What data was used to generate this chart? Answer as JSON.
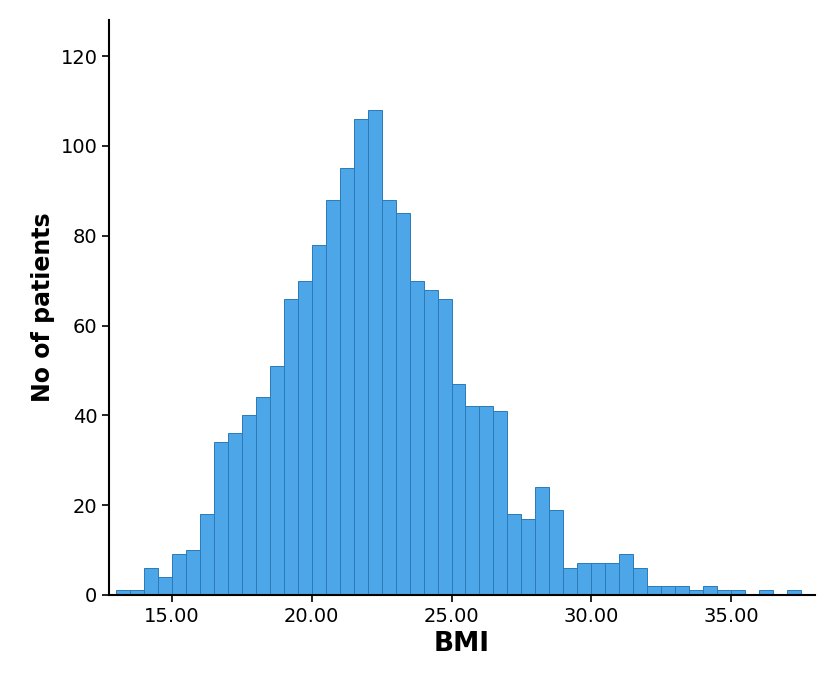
{
  "bar_left_edges": [
    13.0,
    13.5,
    14.0,
    14.5,
    15.0,
    15.5,
    16.0,
    16.5,
    17.0,
    17.5,
    18.0,
    18.5,
    19.0,
    19.5,
    20.0,
    20.5,
    21.0,
    21.5,
    22.0,
    22.5,
    23.0,
    23.5,
    24.0,
    24.5,
    25.0,
    25.5,
    26.0,
    26.5,
    27.0,
    27.5,
    28.0,
    28.5,
    29.0,
    29.5,
    30.0,
    30.5,
    31.0,
    31.5,
    32.0,
    32.5,
    33.0,
    33.5,
    34.0,
    34.5,
    35.0,
    35.5,
    36.0,
    36.5,
    37.0
  ],
  "bar_heights": [
    1,
    1,
    6,
    4,
    9,
    10,
    18,
    34,
    36,
    40,
    44,
    51,
    66,
    70,
    78,
    88,
    95,
    106,
    108,
    88,
    85,
    70,
    68,
    66,
    47,
    42,
    42,
    41,
    18,
    17,
    24,
    19,
    6,
    7,
    7,
    7,
    9,
    6,
    2,
    2,
    2,
    1,
    2,
    1,
    1,
    0,
    1,
    0,
    1
  ],
  "bar_width": 0.5,
  "bar_color": "#4da6e8",
  "bar_edgecolor": "#2b7bba",
  "ylabel": "No of patients",
  "xlabel": "BMI",
  "ylim": [
    0,
    128
  ],
  "xlim": [
    12.75,
    38.0
  ],
  "yticks": [
    0,
    20,
    40,
    60,
    80,
    100,
    120
  ],
  "xticks": [
    15.0,
    20.0,
    25.0,
    30.0,
    35.0
  ],
  "xticklabels": [
    "15.00",
    "20.00",
    "25.00",
    "30.00",
    "35.00"
  ],
  "yticklabels": [
    "0",
    "20",
    "40",
    "60",
    "80",
    "100",
    "120"
  ],
  "ylabel_fontsize": 17,
  "xlabel_fontsize": 19,
  "xlabel_fontweight": "bold",
  "ylabel_fontweight": "bold",
  "tick_fontsize": 14,
  "plot_bgcolor": "#ffffff",
  "fig_bgcolor": "none"
}
